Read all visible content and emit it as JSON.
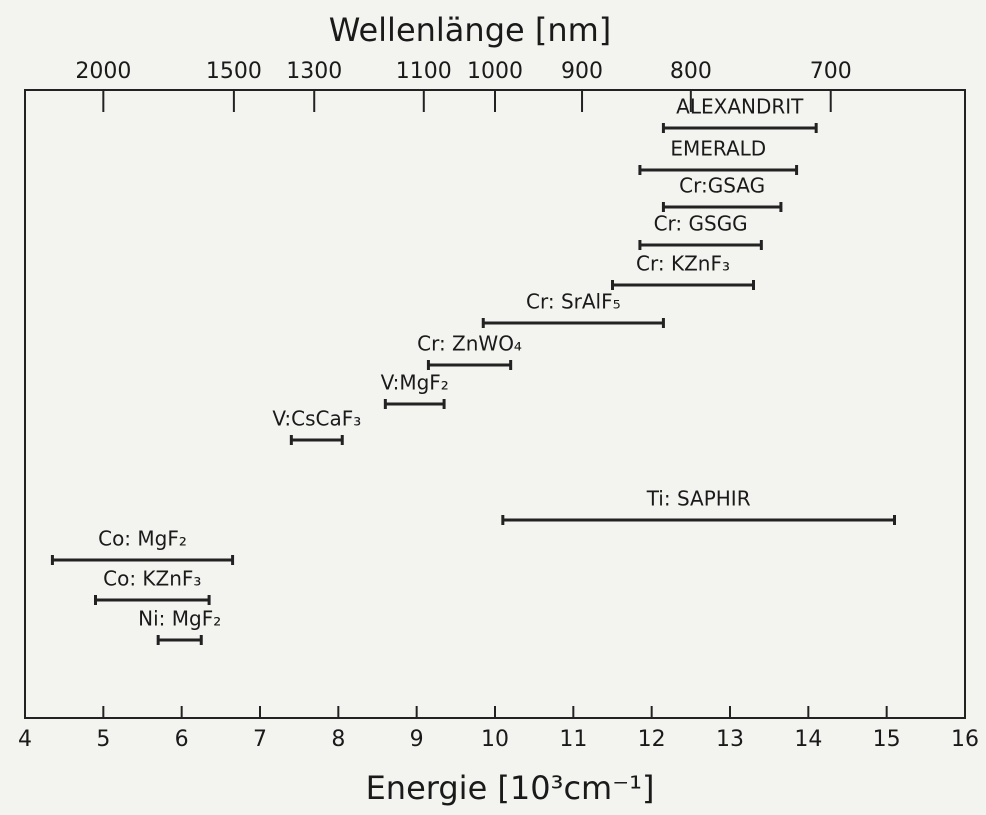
{
  "chart_data": {
    "type": "range_bar",
    "x2label": "Wellenlänge [nm]",
    "xlabel": "Energie [10³cm⁻¹]",
    "xlim": [
      4,
      16
    ],
    "xticks": [
      4,
      5,
      6,
      7,
      8,
      9,
      10,
      11,
      12,
      13,
      14,
      15,
      16
    ],
    "x2scale": "reciprocal",
    "x2ticks": [
      2000,
      1500,
      1300,
      1100,
      1000,
      900,
      800,
      700
    ],
    "color": "#222222",
    "bars": [
      {
        "name": "ALEXANDRIT",
        "start": 12.15,
        "end": 14.1
      },
      {
        "name": "EMERALD",
        "start": 11.85,
        "end": 13.85
      },
      {
        "name": "Cr:GSAG",
        "start": 12.15,
        "end": 13.65
      },
      {
        "name": "Cr: GSGG",
        "start": 11.85,
        "end": 13.4
      },
      {
        "name": "Cr: KZnF₃",
        "start": 11.5,
        "end": 13.3
      },
      {
        "name": "Cr: SrAlF₅",
        "start": 9.85,
        "end": 12.15
      },
      {
        "name": "Cr: ZnWO₄",
        "start": 9.15,
        "end": 10.2
      },
      {
        "name": "V:MgF₂",
        "start": 8.6,
        "end": 9.35
      },
      {
        "name": "V:CsCaF₃",
        "start": 7.4,
        "end": 8.05
      },
      {
        "name": "Ti: SAPHIR",
        "start": 10.1,
        "end": 15.1
      },
      {
        "name": "Co: MgF₂",
        "start": 4.35,
        "end": 6.65
      },
      {
        "name": "Co: KZnF₃",
        "start": 4.9,
        "end": 6.35
      },
      {
        "name": "Ni: MgF₂",
        "start": 5.7,
        "end": 6.25
      }
    ]
  }
}
